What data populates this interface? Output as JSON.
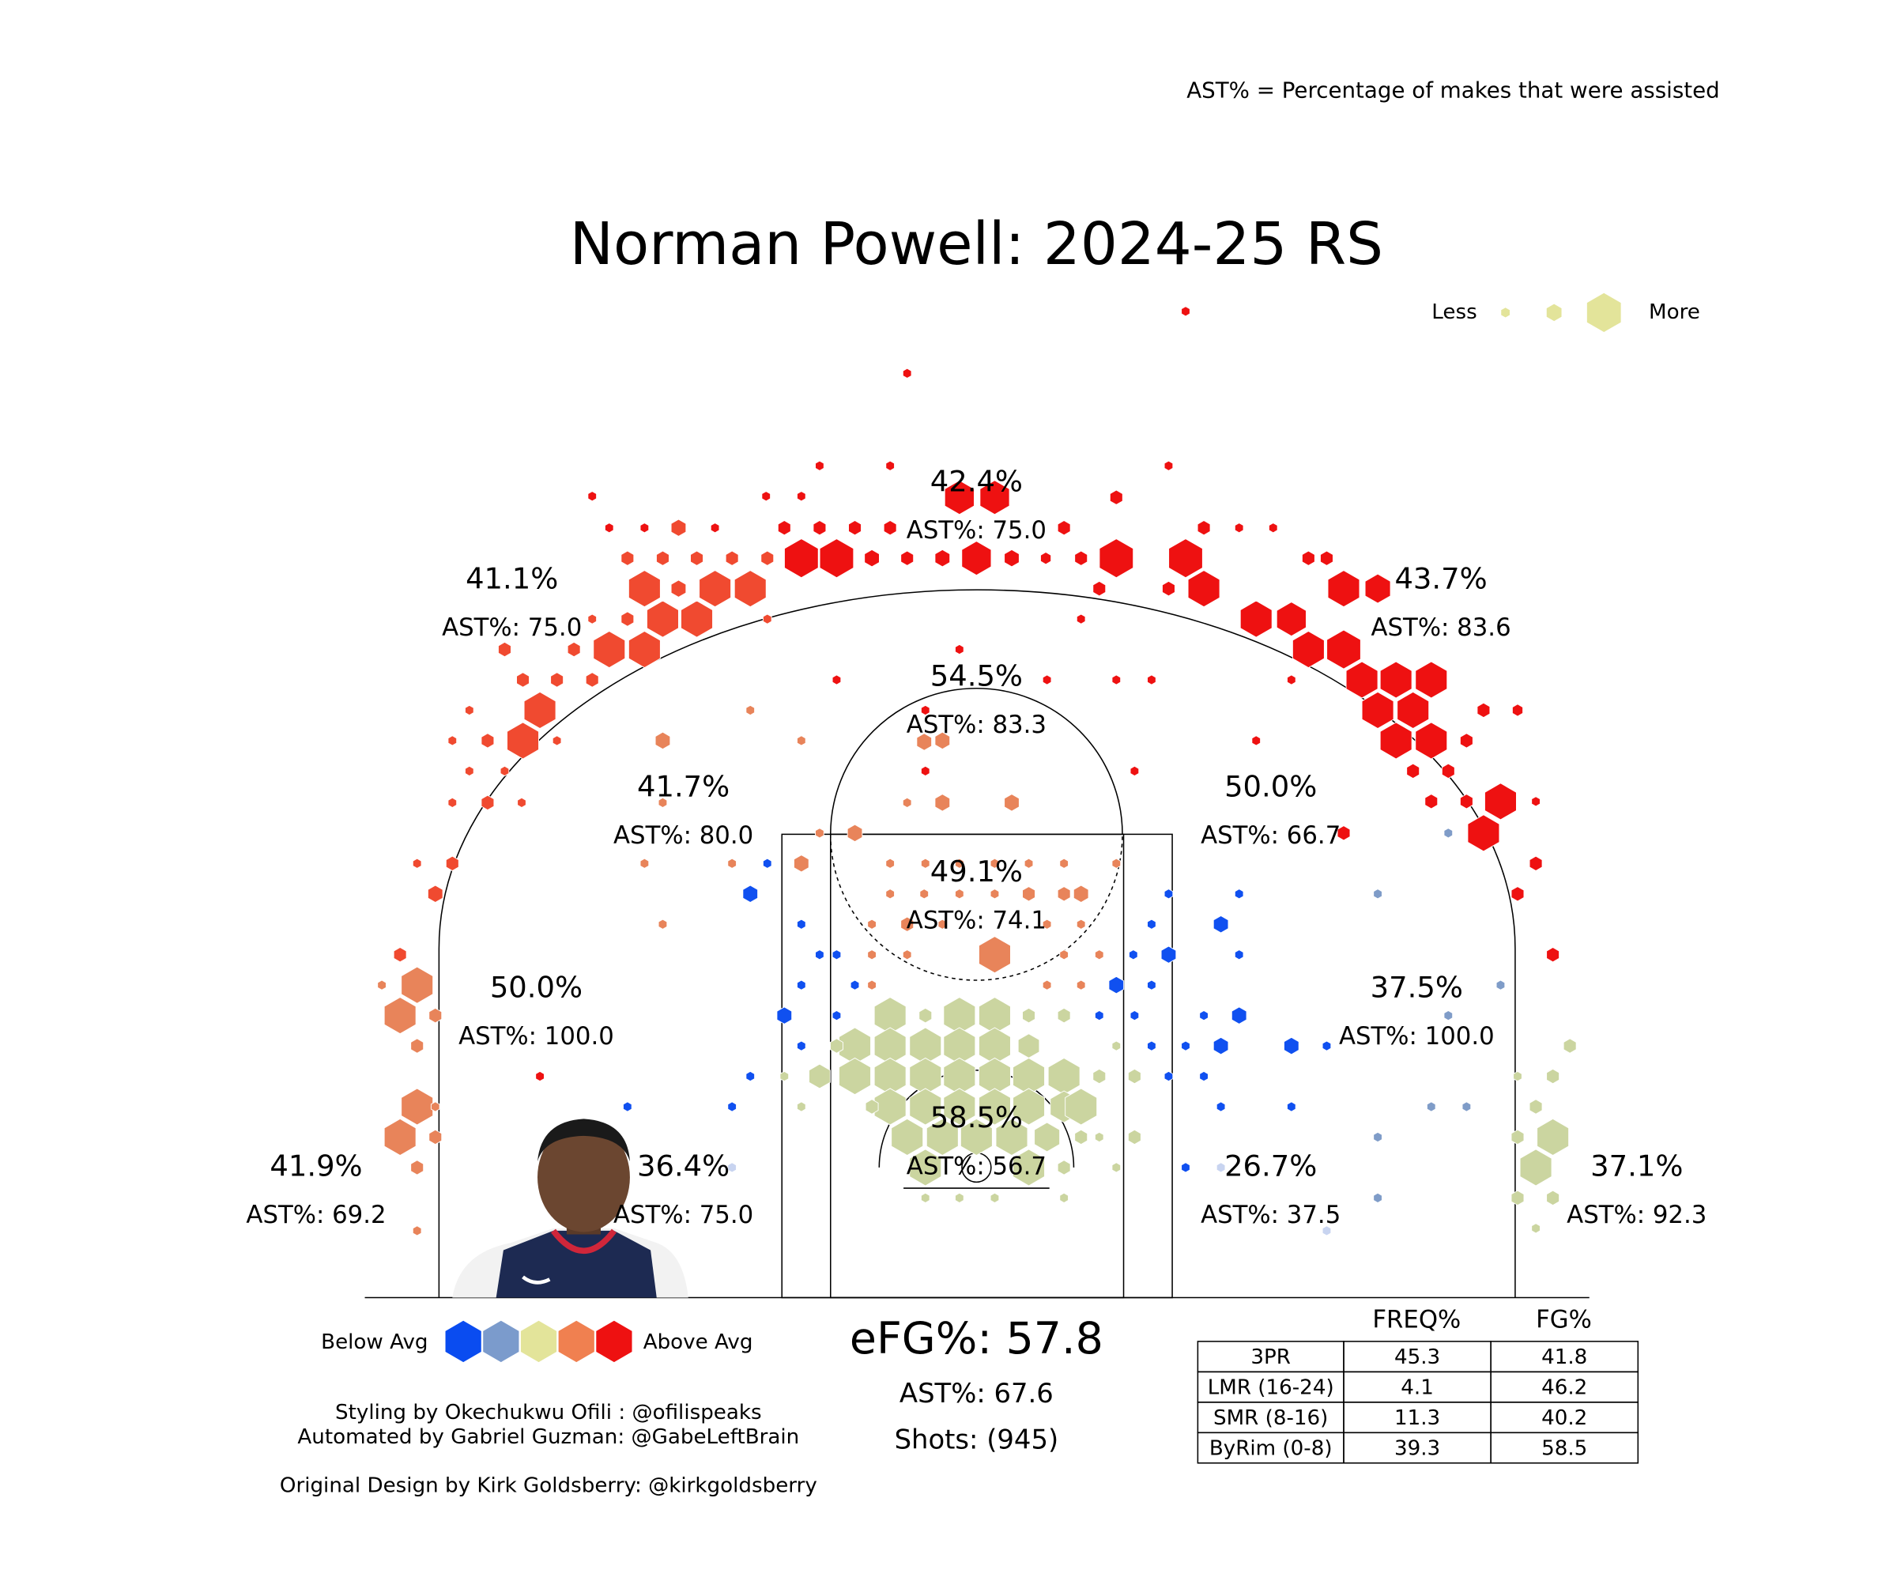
{
  "header": {
    "note": "AST% = Percentage of makes that were assisted",
    "title": "Norman Powell: 2024-25 RS"
  },
  "size_legend": {
    "less": "Less",
    "more": "More",
    "color": "#e3e49a"
  },
  "zones": [
    {
      "fg": "42.4%",
      "ast": "AST%: 75.0"
    },
    {
      "fg": "41.1%",
      "ast": "AST%: 75.0"
    },
    {
      "fg": "43.7%",
      "ast": "AST%: 83.6"
    },
    {
      "fg": "54.5%",
      "ast": "AST%: 83.3"
    },
    {
      "fg": "41.7%",
      "ast": "AST%: 80.0"
    },
    {
      "fg": "50.0%",
      "ast": "AST%: 66.7"
    },
    {
      "fg": "49.1%",
      "ast": "AST%: 74.1"
    },
    {
      "fg": "50.0%",
      "ast": "AST%: 100.0"
    },
    {
      "fg": "37.5%",
      "ast": "AST%: 100.0"
    },
    {
      "fg": "58.5%",
      "ast": "AST%: 56.7"
    },
    {
      "fg": "41.9%",
      "ast": "AST%: 69.2"
    },
    {
      "fg": "36.4%",
      "ast": "AST%: 75.0"
    },
    {
      "fg": "26.7%",
      "ast": "AST%: 37.5"
    },
    {
      "fg": "37.1%",
      "ast": "AST%: 92.3"
    }
  ],
  "color_legend": {
    "below": "Below Avg",
    "above": "Above Avg",
    "colors": [
      "#0a4cf0",
      "#7b9bcc",
      "#e3e49a",
      "#f08050",
      "#ee1111"
    ]
  },
  "summary": {
    "efg": "eFG%: 57.8",
    "ast": "AST%: 67.6",
    "shots": "Shots: (945)"
  },
  "credits": [
    "Styling by Okechukwu Ofili : @ofilispeaks",
    "Automated by Gabriel Guzman: @GabeLeftBrain",
    "Original Design by Kirk Goldsberry: @kirkgoldsberry"
  ],
  "table": {
    "columns": [
      "FREQ%",
      "FG%"
    ],
    "rows": [
      [
        "3PR",
        45.3,
        41.8
      ],
      [
        "LMR (16-24)",
        4.1,
        46.2
      ],
      [
        "SMR (8-16)",
        11.3,
        40.2
      ],
      [
        "ByRim (0-8)",
        39.3,
        58.5
      ]
    ]
  }
}
